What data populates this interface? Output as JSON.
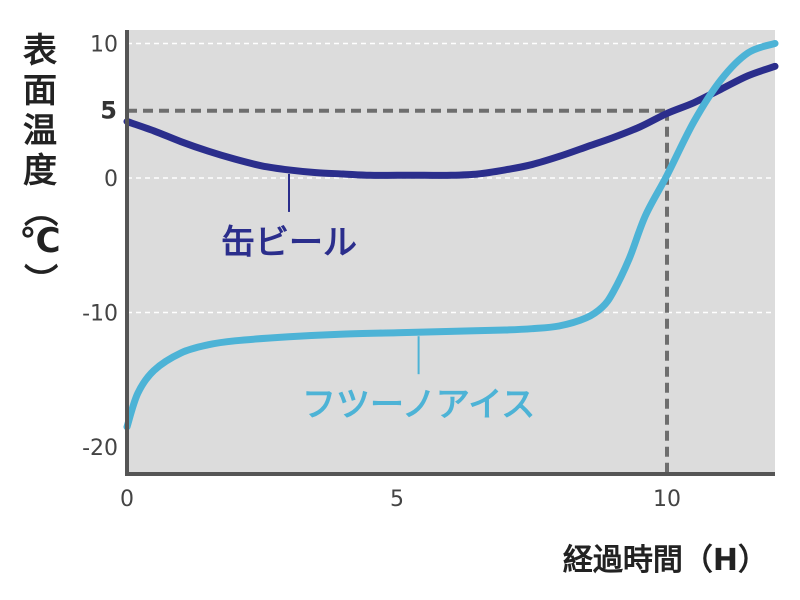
{
  "chart_data": {
    "type": "line",
    "ylabel": "表面温度（℃）",
    "xlabel": "経過時間（H）",
    "xlim": [
      0,
      12
    ],
    "ylim": [
      -22,
      11
    ],
    "x_ticks": [
      {
        "value": 0,
        "label": "0"
      },
      {
        "value": 5,
        "label": "5"
      },
      {
        "value": 10,
        "label": "10"
      }
    ],
    "y_ticks": [
      {
        "value": 10,
        "label": "10",
        "emphasis": false
      },
      {
        "value": 5,
        "label": "5",
        "emphasis": true
      },
      {
        "value": 0,
        "label": "0",
        "emphasis": false
      },
      {
        "value": -10,
        "label": "-10",
        "emphasis": false
      },
      {
        "value": -20,
        "label": "-20",
        "emphasis": false
      }
    ],
    "grid": {
      "y_values": [
        10,
        0,
        -10
      ],
      "style": "dashed"
    },
    "reference_point": {
      "x": 10,
      "y": 5
    },
    "series": [
      {
        "name": "缶ビール",
        "color": "#2b2e8c",
        "label_anchor_x": 3,
        "points": [
          [
            0,
            4.2
          ],
          [
            0.5,
            3.5
          ],
          [
            1,
            2.7
          ],
          [
            1.5,
            2.0
          ],
          [
            2,
            1.4
          ],
          [
            2.5,
            0.9
          ],
          [
            3,
            0.6
          ],
          [
            3.5,
            0.4
          ],
          [
            4,
            0.3
          ],
          [
            4.5,
            0.2
          ],
          [
            5,
            0.2
          ],
          [
            5.5,
            0.2
          ],
          [
            6,
            0.2
          ],
          [
            6.5,
            0.3
          ],
          [
            7,
            0.6
          ],
          [
            7.5,
            1.0
          ],
          [
            8,
            1.6
          ],
          [
            8.5,
            2.3
          ],
          [
            9,
            3.0
          ],
          [
            9.5,
            3.8
          ],
          [
            10,
            4.8
          ],
          [
            10.5,
            5.6
          ],
          [
            11,
            6.6
          ],
          [
            11.5,
            7.6
          ],
          [
            12,
            8.3
          ]
        ]
      },
      {
        "name": "フツーノアイス",
        "color": "#4db3d6",
        "label_anchor_x": 5.4,
        "points": [
          [
            0,
            -18.5
          ],
          [
            0.2,
            -16.0
          ],
          [
            0.5,
            -14.3
          ],
          [
            1,
            -13.0
          ],
          [
            1.5,
            -12.4
          ],
          [
            2,
            -12.1
          ],
          [
            3,
            -11.8
          ],
          [
            4,
            -11.6
          ],
          [
            5,
            -11.5
          ],
          [
            6,
            -11.4
          ],
          [
            7,
            -11.3
          ],
          [
            7.5,
            -11.2
          ],
          [
            8,
            -11.0
          ],
          [
            8.5,
            -10.4
          ],
          [
            8.8,
            -9.6
          ],
          [
            9.0,
            -8.5
          ],
          [
            9.3,
            -6.0
          ],
          [
            9.6,
            -2.8
          ],
          [
            10,
            0.2
          ],
          [
            10.5,
            4.2
          ],
          [
            11,
            7.3
          ],
          [
            11.5,
            9.3
          ],
          [
            12,
            10.0
          ]
        ]
      }
    ]
  }
}
